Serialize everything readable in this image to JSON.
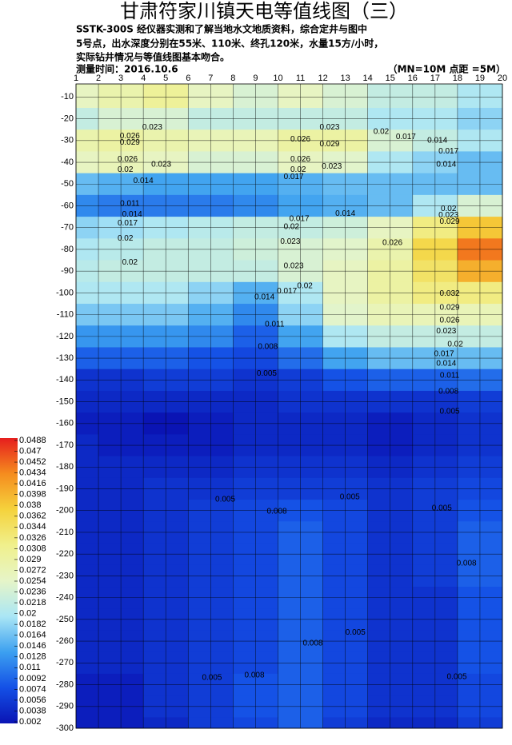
{
  "chart_data": {
    "type": "heatmap",
    "title": "甘肃符家川镇天电等值线图（三）",
    "description_lines": [
      "SSTK-300S  经仪器实测和了解当地水文地质资料，综合定井与图中",
      "5号点，出水深度分别在55米、110米、终孔120米，水量15方/小时，",
      "实际钻井情况与等值线图基本吻合。"
    ],
    "date_label": "测量时间：2016.10.6",
    "spacing_label": "（MN=10M 点距 =5M）",
    "xlim": [
      1,
      20
    ],
    "xticks": [
      1,
      2,
      3,
      4,
      5,
      6,
      7,
      8,
      9,
      10,
      11,
      12,
      13,
      14,
      15,
      16,
      17,
      18,
      19,
      20
    ],
    "ylim": [
      -300,
      -4
    ],
    "yticks": [
      -10,
      -20,
      -30,
      -40,
      -50,
      -60,
      -70,
      -80,
      -90,
      -100,
      -110,
      -120,
      -130,
      -140,
      -150,
      -160,
      -170,
      -180,
      -190,
      -200,
      -210,
      -220,
      -230,
      -240,
      -250,
      -260,
      -270,
      -280,
      -290,
      -300
    ],
    "grid": true,
    "clim": [
      0.002,
      0.0488
    ],
    "cticks": [
      0.0488,
      0.047,
      0.0452,
      0.0434,
      0.0416,
      0.0398,
      0.038,
      0.0362,
      0.0344,
      0.0326,
      0.0308,
      0.029,
      0.0272,
      0.0254,
      0.0236,
      0.0218,
      0.02,
      0.0182,
      0.0164,
      0.0146,
      0.0128,
      0.011,
      0.0092,
      0.0074,
      0.0056,
      0.0038,
      0.002
    ],
    "colors": [
      "#0a14b4",
      "#1450e6",
      "#3ca0f0",
      "#aae6f5",
      "#e6f5c8",
      "#f0f08c",
      "#f5d23c",
      "#f58c1e",
      "#e61e1e"
    ],
    "x": [
      1,
      3,
      5,
      7,
      9,
      11,
      13,
      15,
      17,
      19
    ],
    "y": [
      -10,
      -20,
      -30,
      -40,
      -50,
      -60,
      -70,
      -80,
      -90,
      -100,
      -110,
      -120,
      -130,
      -140,
      -150,
      -160,
      -170,
      -180,
      -190,
      -200,
      -210,
      -220,
      -230,
      -240,
      -250,
      -260,
      -270,
      -280,
      -290,
      -300
    ],
    "z": [
      [
        0.026,
        0.028,
        0.03,
        0.026,
        0.024,
        0.026,
        0.024,
        0.022,
        0.022,
        0.02
      ],
      [
        0.022,
        0.024,
        0.024,
        0.022,
        0.022,
        0.022,
        0.022,
        0.02,
        0.02,
        0.018
      ],
      [
        0.028,
        0.029,
        0.028,
        0.027,
        0.027,
        0.029,
        0.029,
        0.024,
        0.022,
        0.02
      ],
      [
        0.026,
        0.027,
        0.026,
        0.024,
        0.024,
        0.026,
        0.025,
        0.02,
        0.018,
        0.016
      ],
      [
        0.016,
        0.015,
        0.014,
        0.014,
        0.014,
        0.015,
        0.016,
        0.016,
        0.016,
        0.016
      ],
      [
        0.012,
        0.011,
        0.011,
        0.011,
        0.012,
        0.014,
        0.015,
        0.016,
        0.02,
        0.024
      ],
      [
        0.018,
        0.019,
        0.02,
        0.021,
        0.022,
        0.022,
        0.023,
        0.026,
        0.032,
        0.038
      ],
      [
        0.02,
        0.021,
        0.022,
        0.022,
        0.023,
        0.024,
        0.025,
        0.028,
        0.036,
        0.044
      ],
      [
        0.021,
        0.022,
        0.022,
        0.022,
        0.022,
        0.024,
        0.026,
        0.029,
        0.034,
        0.04
      ],
      [
        0.02,
        0.02,
        0.02,
        0.018,
        0.015,
        0.02,
        0.026,
        0.029,
        0.032,
        0.032
      ],
      [
        0.017,
        0.017,
        0.017,
        0.015,
        0.012,
        0.018,
        0.025,
        0.027,
        0.027,
        0.027
      ],
      [
        0.013,
        0.013,
        0.013,
        0.012,
        0.009,
        0.014,
        0.02,
        0.022,
        0.022,
        0.022
      ],
      [
        0.009,
        0.009,
        0.009,
        0.008,
        0.007,
        0.01,
        0.014,
        0.016,
        0.016,
        0.016
      ],
      [
        0.005,
        0.005,
        0.006,
        0.006,
        0.005,
        0.006,
        0.008,
        0.009,
        0.009,
        0.01
      ],
      [
        0.004,
        0.004,
        0.004,
        0.004,
        0.004,
        0.005,
        0.005,
        0.005,
        0.005,
        0.006
      ],
      [
        0.003,
        0.003,
        0.002,
        0.003,
        0.004,
        0.004,
        0.004,
        0.003,
        0.004,
        0.005
      ],
      [
        0.004,
        0.003,
        0.003,
        0.003,
        0.004,
        0.004,
        0.004,
        0.003,
        0.004,
        0.005
      ],
      [
        0.004,
        0.004,
        0.004,
        0.004,
        0.005,
        0.005,
        0.005,
        0.004,
        0.005,
        0.006
      ],
      [
        0.004,
        0.004,
        0.005,
        0.005,
        0.006,
        0.006,
        0.006,
        0.005,
        0.006,
        0.007
      ],
      [
        0.004,
        0.004,
        0.005,
        0.006,
        0.007,
        0.008,
        0.007,
        0.005,
        0.006,
        0.008
      ],
      [
        0.004,
        0.004,
        0.005,
        0.006,
        0.007,
        0.009,
        0.007,
        0.005,
        0.006,
        0.009
      ],
      [
        0.004,
        0.004,
        0.005,
        0.006,
        0.007,
        0.009,
        0.007,
        0.005,
        0.006,
        0.009
      ],
      [
        0.004,
        0.004,
        0.005,
        0.006,
        0.007,
        0.009,
        0.007,
        0.005,
        0.006,
        0.009
      ],
      [
        0.004,
        0.004,
        0.005,
        0.006,
        0.007,
        0.009,
        0.007,
        0.005,
        0.005,
        0.008
      ],
      [
        0.004,
        0.004,
        0.005,
        0.006,
        0.007,
        0.009,
        0.007,
        0.005,
        0.005,
        0.008
      ],
      [
        0.004,
        0.004,
        0.005,
        0.006,
        0.007,
        0.009,
        0.007,
        0.005,
        0.005,
        0.008
      ],
      [
        0.004,
        0.004,
        0.005,
        0.006,
        0.007,
        0.009,
        0.007,
        0.005,
        0.005,
        0.008
      ],
      [
        0.003,
        0.003,
        0.005,
        0.006,
        0.008,
        0.009,
        0.007,
        0.005,
        0.005,
        0.007
      ],
      [
        0.003,
        0.003,
        0.005,
        0.006,
        0.008,
        0.009,
        0.007,
        0.005,
        0.005,
        0.007
      ],
      [
        0.003,
        0.003,
        0.004,
        0.006,
        0.007,
        0.009,
        0.006,
        0.004,
        0.004,
        0.006
      ]
    ],
    "contour_labels": [
      {
        "value": 0.023,
        "x": 4.4,
        "y": -24
      },
      {
        "value": 0.026,
        "x": 3.4,
        "y": -28
      },
      {
        "value": 0.029,
        "x": 3.4,
        "y": -31
      },
      {
        "value": 0.026,
        "x": 3.3,
        "y": -38.7
      },
      {
        "value": 0.02,
        "x": 3.2,
        "y": -43.5
      },
      {
        "value": 0.023,
        "x": 4.8,
        "y": -41
      },
      {
        "value": 0.014,
        "x": 4.0,
        "y": -48.6
      },
      {
        "value": 0.011,
        "x": 3.4,
        "y": -59
      },
      {
        "value": 0.014,
        "x": 3.5,
        "y": -64
      },
      {
        "value": 0.017,
        "x": 3.3,
        "y": -68
      },
      {
        "value": 0.02,
        "x": 3.2,
        "y": -75
      },
      {
        "value": 0.02,
        "x": 3.4,
        "y": -86
      },
      {
        "value": 0.026,
        "x": 11,
        "y": -29.5
      },
      {
        "value": 0.023,
        "x": 12.3,
        "y": -24
      },
      {
        "value": 0.029,
        "x": 12.3,
        "y": -31.7
      },
      {
        "value": 0.02,
        "x": 14.6,
        "y": -26
      },
      {
        "value": 0.017,
        "x": 15.7,
        "y": -28.4
      },
      {
        "value": 0.014,
        "x": 17.1,
        "y": -30
      },
      {
        "value": 0.017,
        "x": 17.6,
        "y": -35
      },
      {
        "value": 0.026,
        "x": 11,
        "y": -38.7
      },
      {
        "value": 0.02,
        "x": 10.9,
        "y": -43.5
      },
      {
        "value": 0.017,
        "x": 10.7,
        "y": -46.8
      },
      {
        "value": 0.023,
        "x": 12.4,
        "y": -42
      },
      {
        "value": 0.014,
        "x": 17.5,
        "y": -41
      },
      {
        "value": 0.014,
        "x": 13,
        "y": -63.7
      },
      {
        "value": 0.017,
        "x": 10.95,
        "y": -66
      },
      {
        "value": 0.02,
        "x": 10.6,
        "y": -69.6
      },
      {
        "value": 0.023,
        "x": 10.55,
        "y": -76.5
      },
      {
        "value": 0.023,
        "x": 10.7,
        "y": -87.6
      },
      {
        "value": 0.02,
        "x": 17.6,
        "y": -61.5
      },
      {
        "value": 0.023,
        "x": 17.6,
        "y": -64.4
      },
      {
        "value": 0.029,
        "x": 17.65,
        "y": -67.3
      },
      {
        "value": 0.026,
        "x": 15.1,
        "y": -77
      },
      {
        "value": 0.02,
        "x": 11.2,
        "y": -96.8
      },
      {
        "value": 0.017,
        "x": 10.4,
        "y": -99.3
      },
      {
        "value": 0.014,
        "x": 9.4,
        "y": -102
      },
      {
        "value": 0.011,
        "x": 9.85,
        "y": -114.4
      },
      {
        "value": 0.008,
        "x": 9.55,
        "y": -124.7
      },
      {
        "value": 0.005,
        "x": 9.5,
        "y": -137
      },
      {
        "value": 0.032,
        "x": 17.65,
        "y": -100.4
      },
      {
        "value": 0.029,
        "x": 17.65,
        "y": -106.7
      },
      {
        "value": 0.026,
        "x": 17.65,
        "y": -112.6
      },
      {
        "value": 0.023,
        "x": 17.5,
        "y": -117.7
      },
      {
        "value": 0.02,
        "x": 17.9,
        "y": -123.6
      },
      {
        "value": 0.017,
        "x": 17.4,
        "y": -128
      },
      {
        "value": 0.014,
        "x": 17.5,
        "y": -132.4
      },
      {
        "value": 0.011,
        "x": 17.65,
        "y": -138
      },
      {
        "value": 0.008,
        "x": 17.6,
        "y": -145.3
      },
      {
        "value": 0.005,
        "x": 17.65,
        "y": -154.5
      },
      {
        "value": 0.005,
        "x": 7.65,
        "y": -195
      },
      {
        "value": 0.008,
        "x": 9.95,
        "y": -200.4
      },
      {
        "value": 0.005,
        "x": 13.2,
        "y": -193.8
      },
      {
        "value": 0.005,
        "x": 17.3,
        "y": -199
      },
      {
        "value": 0.008,
        "x": 18.4,
        "y": -224.3
      },
      {
        "value": 0.008,
        "x": 11.55,
        "y": -261
      },
      {
        "value": 0.005,
        "x": 13.45,
        "y": -256
      },
      {
        "value": 0.005,
        "x": 7.06,
        "y": -276.9
      },
      {
        "value": 0.008,
        "x": 8.95,
        "y": -275.8
      },
      {
        "value": 0.005,
        "x": 17.97,
        "y": -276.5
      }
    ]
  }
}
